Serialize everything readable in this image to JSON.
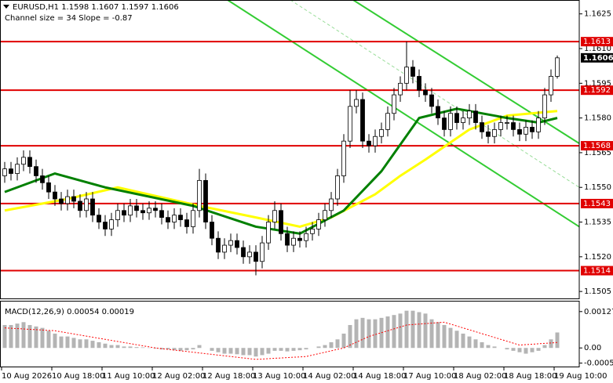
{
  "chart_data": [
    {
      "type": "candlestick",
      "title": "EURUSD,H1  1.1598 1.1607 1.1597 1.1606",
      "subtitle": "Channel size = 34 Slope = -0.87",
      "xlim": [
        -0.75,
        91.5
      ],
      "xticks": [
        {
          "value": -0.5,
          "label": "10 Aug 2026"
        },
        {
          "value": 7.5,
          "label": "10 Aug 18:00"
        },
        {
          "value": 15.5,
          "label": "11 Aug 10:00"
        },
        {
          "value": 23.5,
          "label": "12 Aug 02:00"
        },
        {
          "value": 31.5,
          "label": "12 Aug 18:00"
        },
        {
          "value": 39.5,
          "label": "13 Aug 10:00"
        },
        {
          "value": 47.5,
          "label": "14 Aug 02:00"
        },
        {
          "value": 55.5,
          "label": "14 Aug 18:00"
        },
        {
          "value": 63.5,
          "label": "17 Aug 10:00"
        },
        {
          "value": 71.5,
          "label": "18 Aug 02:00"
        },
        {
          "value": 79.5,
          "label": "18 Aug 18:00"
        },
        {
          "value": 87.5,
          "label": "19 Aug 10:00"
        }
      ],
      "ylim": [
        1.1502,
        1.1631
      ],
      "yticks": [
        1.1625,
        {
          "value": 1.161,
          "label": "1.1610"
        },
        1.1595,
        {
          "value": 1.158,
          "label": "1.1580"
        },
        1.1565,
        {
          "value": 1.155,
          "label": "1.1550"
        },
        1.1535,
        {
          "value": 1.152,
          "label": "1.1520"
        },
        1.1505
      ],
      "color": "#000000",
      "candles": {
        "open": [
          1.1555,
          1.1558,
          1.1556,
          1.156,
          1.1563,
          1.1559,
          1.1555,
          1.1552,
          1.1548,
          1.1545,
          1.1543,
          1.1546,
          1.1544,
          1.154,
          1.1545,
          1.1538,
          1.1535,
          1.1532,
          1.1536,
          1.154,
          1.1538,
          1.1542,
          1.154,
          1.1539,
          1.1541,
          1.154,
          1.1537,
          1.1535,
          1.1538,
          1.1536,
          1.1533,
          1.154,
          1.1553,
          1.1535,
          1.1528,
          1.1522,
          1.1525,
          1.1527,
          1.1524,
          1.152,
          1.1522,
          1.1518,
          1.1526,
          1.1535,
          1.154,
          1.153,
          1.1525,
          1.1528,
          1.1527,
          1.153,
          1.1532,
          1.1536,
          1.154,
          1.1545,
          1.1555,
          1.157,
          1.1585,
          1.1588,
          1.157,
          1.1568,
          1.1572,
          1.1575,
          1.1582,
          1.159,
          1.1595,
          1.1602,
          1.1598,
          1.1592,
          1.159,
          1.1585,
          1.158,
          1.1575,
          1.1582,
          1.1578,
          1.158,
          1.1583,
          1.1578,
          1.1574,
          1.1572,
          1.1575,
          1.1578,
          1.1578,
          1.1575,
          1.1573,
          1.1576,
          1.1574,
          1.158,
          1.159,
          1.1598
        ],
        "high": [
          1.1561,
          1.1561,
          1.1563,
          1.1566,
          1.1566,
          1.1562,
          1.1558,
          1.1555,
          1.1551,
          1.1548,
          1.1549,
          1.1549,
          1.1547,
          1.1548,
          1.1548,
          1.1541,
          1.1538,
          1.1539,
          1.1543,
          1.1543,
          1.1545,
          1.1545,
          1.1543,
          1.1544,
          1.1544,
          1.1543,
          1.154,
          1.1541,
          1.1541,
          1.1539,
          1.1543,
          1.1558,
          1.1556,
          1.1538,
          1.1531,
          1.1528,
          1.153,
          1.153,
          1.1527,
          1.1525,
          1.1525,
          1.1529,
          1.1538,
          1.1544,
          1.1543,
          1.1533,
          1.1531,
          1.1531,
          1.1533,
          1.1535,
          1.1539,
          1.1543,
          1.1548,
          1.1558,
          1.1573,
          1.1592,
          1.1592,
          1.1591,
          1.1573,
          1.1575,
          1.1578,
          1.1585,
          1.1593,
          1.1598,
          1.1613,
          1.1605,
          1.1601,
          1.1595,
          1.1593,
          1.1588,
          1.1583,
          1.1585,
          1.1585,
          1.1583,
          1.1586,
          1.1586,
          1.1581,
          1.1577,
          1.1578,
          1.1581,
          1.1581,
          1.1581,
          1.1578,
          1.1579,
          1.1579,
          1.1583,
          1.1593,
          1.1601,
          1.1607
        ],
        "low": [
          1.1552,
          1.1553,
          1.1553,
          1.1557,
          1.1556,
          1.1552,
          1.1549,
          1.1545,
          1.1542,
          1.154,
          1.154,
          1.1541,
          1.1537,
          1.1537,
          1.1535,
          1.1532,
          1.1529,
          1.1529,
          1.1533,
          1.1535,
          1.1535,
          1.1537,
          1.1536,
          1.1536,
          1.1537,
          1.1534,
          1.1532,
          1.1532,
          1.1533,
          1.153,
          1.153,
          1.1537,
          1.1532,
          1.1525,
          1.1519,
          1.1519,
          1.1522,
          1.1521,
          1.1517,
          1.1517,
          1.1512,
          1.1515,
          1.1523,
          1.1532,
          1.1527,
          1.1522,
          1.1522,
          1.1524,
          1.1524,
          1.1527,
          1.1529,
          1.1533,
          1.1537,
          1.1542,
          1.1552,
          1.1567,
          1.1582,
          1.1567,
          1.1565,
          1.1565,
          1.1569,
          1.1572,
          1.1579,
          1.1587,
          1.1592,
          1.1595,
          1.1589,
          1.1587,
          1.1582,
          1.1577,
          1.1572,
          1.1572,
          1.1575,
          1.1575,
          1.1577,
          1.1575,
          1.1571,
          1.1569,
          1.1569,
          1.1572,
          1.1575,
          1.1572,
          1.157,
          1.157,
          1.1571,
          1.1571,
          1.1577,
          1.1587,
          1.1597
        ],
        "close": [
          1.1558,
          1.1556,
          1.156,
          1.1563,
          1.1559,
          1.1555,
          1.1552,
          1.1548,
          1.1545,
          1.1543,
          1.1546,
          1.1544,
          1.154,
          1.1545,
          1.1538,
          1.1535,
          1.1532,
          1.1536,
          1.154,
          1.1538,
          1.1542,
          1.154,
          1.1539,
          1.1541,
          1.154,
          1.1537,
          1.1535,
          1.1538,
          1.1536,
          1.1533,
          1.154,
          1.1553,
          1.1535,
          1.1528,
          1.1522,
          1.1525,
          1.1527,
          1.1524,
          1.152,
          1.1522,
          1.1518,
          1.1526,
          1.1535,
          1.154,
          1.153,
          1.1525,
          1.1528,
          1.1527,
          1.153,
          1.1532,
          1.1536,
          1.154,
          1.1545,
          1.1555,
          1.157,
          1.1585,
          1.1588,
          1.157,
          1.1568,
          1.1572,
          1.1575,
          1.1582,
          1.159,
          1.1595,
          1.1602,
          1.1598,
          1.1592,
          1.159,
          1.1585,
          1.158,
          1.1575,
          1.1582,
          1.1578,
          1.158,
          1.1583,
          1.1578,
          1.1574,
          1.1572,
          1.1575,
          1.1578,
          1.1578,
          1.1575,
          1.1573,
          1.1576,
          1.1574,
          1.158,
          1.159,
          1.1598,
          1.1606
        ]
      },
      "moving_averages": [
        {
          "color": "#ffff00",
          "x": [
            0,
            10,
            18,
            31,
            40,
            47,
            52,
            59,
            63,
            67,
            74,
            80,
            88
          ],
          "values": [
            1.154,
            1.1545,
            1.155,
            1.1542,
            1.1537,
            1.1533,
            1.1537,
            1.1547,
            1.1555,
            1.1562,
            1.1575,
            1.1581,
            1.1583
          ]
        },
        {
          "color": "#008000",
          "x": [
            0,
            8,
            16,
            30,
            40,
            47,
            54,
            60,
            66,
            72,
            80,
            85,
            88
          ],
          "values": [
            1.1548,
            1.1556,
            1.155,
            1.1542,
            1.1533,
            1.153,
            1.154,
            1.1557,
            1.158,
            1.1584,
            1.158,
            1.1578,
            1.158
          ]
        }
      ],
      "trendlines": [
        {
          "color": "#33cc33",
          "x": [
            55.5,
            91.5
          ],
          "values": [
            1.1631,
            1.1569
          ]
        },
        {
          "color": "#33cc33",
          "x": [
            35.5,
            91.5
          ],
          "values": [
            1.1631,
            1.1533
          ]
        },
        {
          "color": "#99dd99",
          "dashed": true,
          "x": [
            45.5,
            91.5
          ],
          "values": [
            1.1631,
            1.155
          ]
        }
      ],
      "levels": [
        1.1613,
        1.1592,
        1.1568,
        1.1543,
        1.1514
      ],
      "level_color": "#e00000",
      "current_price": 1.1606
    },
    {
      "type": "macd",
      "title": "MACD(12,26,9) 0.00054 0.00019",
      "ylim": [
        -0.00065,
        0.00162
      ],
      "yticks": [
        0.00127,
        {
          "value": 0,
          "label": "0.00"
        },
        -0.00053
      ],
      "histogram": {
        "color": "#b4b4b4",
        "values": [
          0.0008,
          0.0008,
          0.00085,
          0.0009,
          0.0008,
          0.00075,
          0.0007,
          0.0006,
          0.0005,
          0.0004,
          0.0004,
          0.00035,
          0.0003,
          0.0003,
          0.00025,
          0.0002,
          0.00015,
          0.0001,
          0.0001,
          5e-05,
          5e-05,
          3e-05,
          2e-05,
          1e-05,
          -2e-05,
          -5e-05,
          -5e-05,
          -8e-05,
          -0.0001,
          -8e-05,
          -5e-05,
          0.0001,
          0,
          -0.0001,
          -0.00015,
          -0.0002,
          -0.0002,
          -0.00022,
          -0.00025,
          -0.00025,
          -0.0003,
          -0.00025,
          -0.0002,
          -0.0001,
          -0.0001,
          -0.00012,
          -0.0001,
          -8e-05,
          -5e-05,
          0,
          5e-05,
          0.0001,
          0.0002,
          0.0003,
          0.0005,
          0.0008,
          0.001,
          0.00105,
          0.001,
          0.001,
          0.00105,
          0.0011,
          0.00115,
          0.0012,
          0.0013,
          0.0013,
          0.00125,
          0.0012,
          0.001,
          0.0009,
          0.0008,
          0.0007,
          0.0006,
          0.0005,
          0.0004,
          0.0003,
          0.0002,
          0.0001,
          5e-05,
          0,
          -5e-05,
          -0.0001,
          -0.00015,
          -0.0002,
          -0.00015,
          -0.0001,
          0.0001,
          0.0003,
          0.00054
        ]
      },
      "signal": {
        "color": "#ff0000",
        "x": [
          0,
          8,
          16,
          24,
          32,
          40,
          48,
          54,
          58,
          64,
          70,
          76,
          82,
          88
        ],
        "values": [
          0.0007,
          0.0006,
          0.0003,
          0,
          -0.0002,
          -0.0004,
          -0.0003,
          0,
          0.0004,
          0.0008,
          0.0009,
          0.0005,
          0.0001,
          0.00019
        ]
      }
    }
  ]
}
